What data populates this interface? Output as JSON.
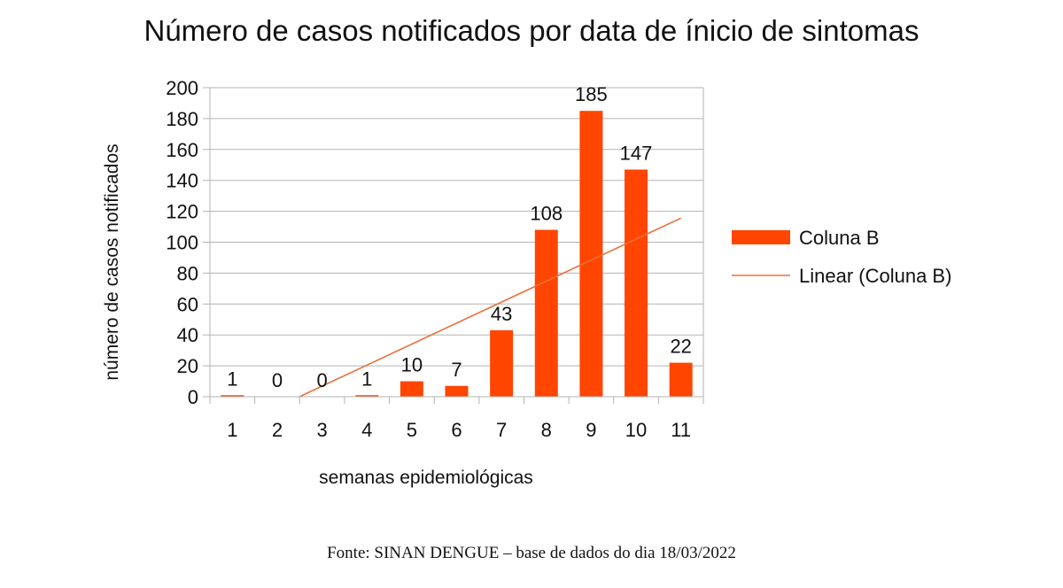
{
  "chart_data": {
    "type": "bar",
    "title": "Número de casos notificados por data de ínicio de sintomas",
    "xlabel": "semanas epidemiológicas",
    "ylabel": "número de casos notificados",
    "categories": [
      "1",
      "2",
      "3",
      "4",
      "5",
      "6",
      "7",
      "8",
      "9",
      "10",
      "11"
    ],
    "series": [
      {
        "name": "Coluna B",
        "values": [
          1,
          0,
          0,
          1,
          10,
          7,
          43,
          108,
          185,
          147,
          22
        ],
        "color": "#ff4500"
      }
    ],
    "trendline": {
      "name": "Linear (Coluna B)",
      "type": "linear",
      "color": "#e8703a"
    },
    "ylim": [
      0,
      200
    ],
    "yticks": [
      0,
      20,
      40,
      60,
      80,
      100,
      120,
      140,
      160,
      180,
      200
    ],
    "grid": true,
    "legend_position": "right",
    "data_labels": true
  },
  "source": "Fonte: SINAN DENGUE – base de dados do dia 18/03/2022"
}
